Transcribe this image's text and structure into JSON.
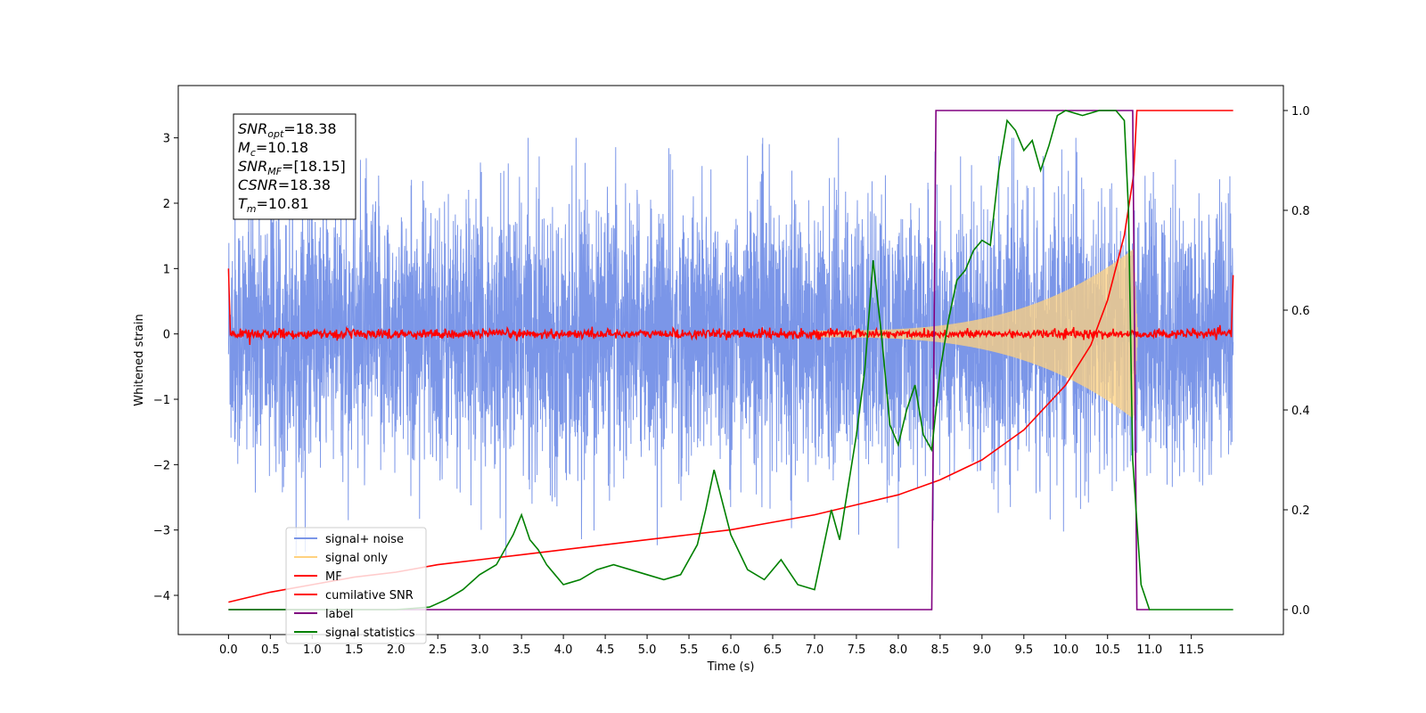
{
  "chart_data": {
    "type": "line",
    "xlabel": "Time (s)",
    "ylabel": "Whitened strain",
    "xlim": [
      -0.6,
      12.6
    ],
    "ylim_left": [
      -4.6,
      3.8
    ],
    "ylim_right": [
      -0.05,
      1.05
    ],
    "x_ticks": [
      "0.0",
      "0.5",
      "1.0",
      "1.5",
      "2.0",
      "2.5",
      "3.0",
      "3.5",
      "4.0",
      "4.5",
      "5.0",
      "5.5",
      "6.0",
      "6.5",
      "7.0",
      "7.5",
      "8.0",
      "8.5",
      "9.0",
      "9.5",
      "10.0",
      "10.5",
      "11.0",
      "11.5"
    ],
    "y_ticks_left": [
      "3",
      "2",
      "1",
      "0",
      "−1",
      "−2",
      "−3",
      "−4"
    ],
    "y_ticks_right": [
      "1.0",
      "0.8",
      "0.6",
      "0.4",
      "0.2",
      "0.0"
    ],
    "annotation": {
      "lines": [
        {
          "var": "SNR",
          "sub": "opt",
          "value": "=18.38"
        },
        {
          "var": "M",
          "sub": "c",
          "value": "=10.18"
        },
        {
          "var": "SNR",
          "sub": "MF",
          "value": "=[18.15]"
        },
        {
          "var": "CSNR",
          "sub": "",
          "value": "=18.38"
        },
        {
          "var": "T",
          "sub": "m",
          "value": "=10.81"
        }
      ]
    },
    "legend": {
      "placement": "lower-left",
      "entries": [
        {
          "label": "signal+ noise",
          "color": "#7b96e8"
        },
        {
          "label": "signal only",
          "color": "#ffd27f"
        },
        {
          "label": "MF",
          "color": "#ff0000"
        },
        {
          "label": "cumilative SNR",
          "color": "#ff0000"
        },
        {
          "label": "label",
          "color": "#800080"
        },
        {
          "label": "signal statistics",
          "color": "#008000"
        }
      ]
    },
    "series": [
      {
        "name": "signal+ noise",
        "axis": "left",
        "color": "#7b96e8",
        "t_range": [
          0,
          12
        ],
        "amplitude_range": [
          -3.4,
          3.0
        ]
      },
      {
        "name": "signal only",
        "axis": "left",
        "color": "#ffd27f",
        "t_peak": 10.81,
        "peak_amplitude": 1.3
      },
      {
        "name": "MF",
        "axis": "left",
        "color": "#ff0000",
        "t_range": [
          0,
          12
        ],
        "level": 0.0,
        "edge_value": 1.0
      },
      {
        "name": "cumilative SNR",
        "axis": "right",
        "color": "#ff0000",
        "x": [
          0,
          0.5,
          1,
          1.5,
          2,
          2.5,
          3,
          3.5,
          4,
          4.5,
          5,
          5.5,
          6,
          6.5,
          7,
          7.5,
          8,
          8.5,
          9,
          9.5,
          10,
          10.3,
          10.5,
          10.7,
          10.81,
          10.85,
          12
        ],
        "y": [
          0.015,
          0.035,
          0.05,
          0.065,
          0.075,
          0.09,
          0.1,
          0.11,
          0.12,
          0.13,
          0.14,
          0.15,
          0.16,
          0.175,
          0.19,
          0.21,
          0.23,
          0.26,
          0.3,
          0.36,
          0.45,
          0.53,
          0.62,
          0.75,
          0.87,
          1.0,
          1.0
        ]
      },
      {
        "name": "label",
        "axis": "right",
        "color": "#800080",
        "x": [
          0,
          8.4,
          8.45,
          10.8,
          10.85,
          11.0,
          11.0
        ],
        "y": [
          0,
          0,
          1,
          1,
          0,
          0,
          0
        ]
      },
      {
        "name": "signal statistics",
        "axis": "right",
        "color": "#008000",
        "x": [
          0,
          1,
          2,
          2.4,
          2.6,
          2.8,
          3.0,
          3.2,
          3.4,
          3.5,
          3.6,
          3.7,
          3.8,
          3.9,
          4.0,
          4.2,
          4.4,
          4.6,
          4.8,
          5.0,
          5.2,
          5.4,
          5.6,
          5.7,
          5.8,
          6.0,
          6.2,
          6.4,
          6.6,
          6.8,
          7.0,
          7.2,
          7.3,
          7.5,
          7.6,
          7.7,
          7.8,
          7.9,
          8.0,
          8.1,
          8.2,
          8.3,
          8.4,
          8.5,
          8.6,
          8.7,
          8.8,
          8.9,
          9.0,
          9.1,
          9.2,
          9.3,
          9.4,
          9.5,
          9.6,
          9.7,
          9.8,
          9.9,
          10.0,
          10.2,
          10.4,
          10.6,
          10.7,
          10.75,
          10.8,
          10.9,
          11.0,
          12.0
        ],
        "y": [
          0.0,
          0.0,
          0.0,
          0.005,
          0.02,
          0.04,
          0.07,
          0.09,
          0.15,
          0.19,
          0.14,
          0.12,
          0.09,
          0.07,
          0.05,
          0.06,
          0.08,
          0.09,
          0.08,
          0.07,
          0.06,
          0.07,
          0.13,
          0.2,
          0.28,
          0.15,
          0.08,
          0.06,
          0.1,
          0.05,
          0.04,
          0.2,
          0.14,
          0.35,
          0.48,
          0.7,
          0.55,
          0.37,
          0.33,
          0.4,
          0.45,
          0.35,
          0.32,
          0.48,
          0.58,
          0.66,
          0.68,
          0.72,
          0.74,
          0.73,
          0.88,
          0.98,
          0.96,
          0.92,
          0.94,
          0.88,
          0.93,
          0.99,
          1.0,
          0.99,
          1.0,
          1.0,
          0.98,
          0.8,
          0.3,
          0.05,
          0.0,
          0.0
        ]
      }
    ]
  }
}
